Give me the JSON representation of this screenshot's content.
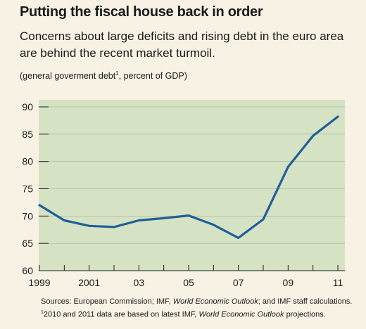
{
  "title": "Putting the fiscal house back in order",
  "subtitle": "Concerns about large deficits and rising debt in the euro area are behind the recent market turmoil.",
  "unit_pre": "(general goverment debt",
  "unit_sup": "1",
  "unit_post": ", percent of GDP)",
  "sources": {
    "pre": "Sources: European Commission; IMF, ",
    "weo": "World Economic Outlook",
    "post": "; and IMF staff calculations."
  },
  "footnote": {
    "sup": "1",
    "pre": "2010 and 2011 data are based on latest IMF, ",
    "weo": "World Economic Outlook",
    "post": " projections."
  },
  "chart_data": {
    "type": "line",
    "x": [
      1999,
      2000,
      2001,
      2002,
      2003,
      2004,
      2005,
      2006,
      2007,
      2008,
      2009,
      2010,
      2011
    ],
    "series": [
      {
        "values": [
          72.0,
          69.2,
          68.2,
          68.0,
          69.2,
          69.6,
          70.1,
          68.4,
          66.0,
          69.4,
          79.0,
          84.7,
          88.2
        ]
      }
    ],
    "ylim": [
      60,
      90
    ],
    "xlim": [
      1999,
      2011
    ],
    "y_ticks": [
      "60",
      "65",
      "70",
      "75",
      "80",
      "85",
      "90"
    ],
    "x_tick_labels": [
      {
        "x": 1999,
        "label": "1999"
      },
      {
        "x": 2001,
        "label": "2001"
      },
      {
        "x": 2003,
        "label": "03"
      },
      {
        "x": 2005,
        "label": "05"
      },
      {
        "x": 2007,
        "label": "07"
      },
      {
        "x": 2009,
        "label": "09"
      },
      {
        "x": 2011,
        "label": "11"
      }
    ],
    "grid": true,
    "colors": {
      "line": "#1f5f98",
      "plot_bg": "#d6e2c4",
      "page_bg": "#f7f2e4"
    }
  }
}
